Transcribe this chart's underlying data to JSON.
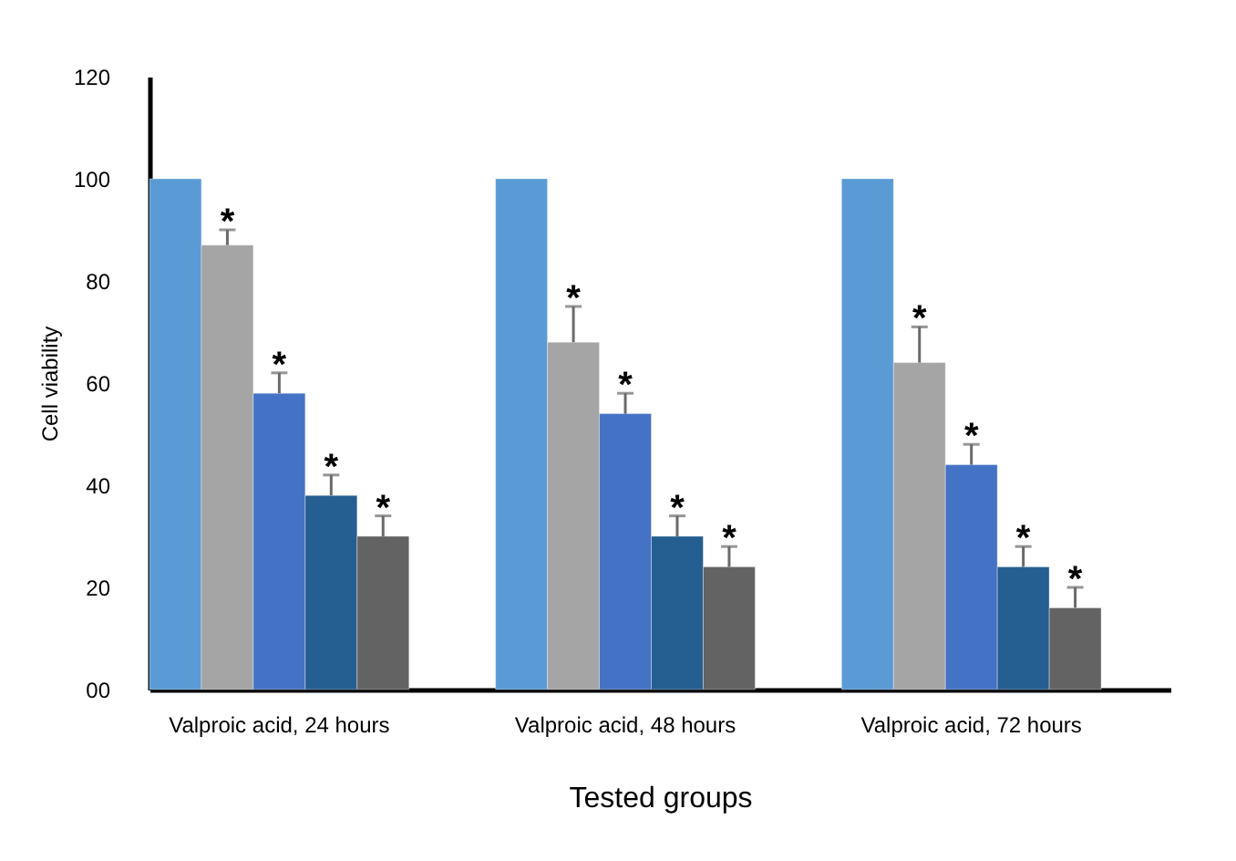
{
  "chart_data": {
    "type": "bar",
    "xlabel": "Tested groups",
    "ylabel": "Cell viability",
    "categories": [
      "Valproic acid, 24 hours",
      "Valproic acid, 48 hours",
      "Valproic acid, 72 hours"
    ],
    "series": [
      {
        "color": "#5b9bd5",
        "values": [
          100,
          100,
          100
        ]
      },
      {
        "color": "#a5a5a5",
        "values": [
          87,
          68,
          64
        ],
        "errors": [
          [
            87,
            90
          ],
          [
            68,
            75
          ],
          [
            64,
            71
          ]
        ],
        "value_labels": [
          "*",
          "*",
          "*"
        ]
      },
      {
        "color": "#4472c4",
        "values": [
          58,
          54,
          44
        ],
        "errors": [
          [
            58,
            62
          ],
          [
            54,
            58
          ],
          [
            44,
            48
          ]
        ],
        "value_labels": [
          "*",
          "*",
          "*"
        ]
      },
      {
        "color": "#255e91",
        "values": [
          38,
          30,
          24
        ],
        "errors": [
          [
            38,
            42
          ],
          [
            30,
            34
          ],
          [
            24,
            28
          ]
        ],
        "value_labels": [
          "*",
          "*",
          "*"
        ]
      },
      {
        "color": "#636363",
        "values": [
          30,
          24,
          16
        ],
        "errors": [
          [
            30,
            34
          ],
          [
            24,
            28
          ],
          [
            16,
            20
          ]
        ],
        "value_labels": [
          "*",
          "*",
          "*"
        ]
      }
    ],
    "ylim": [
      0,
      120
    ],
    "yticks": [
      {
        "value": 0,
        "label": "00"
      },
      20,
      40,
      60,
      80,
      100,
      120
    ],
    "grid": false,
    "legend": false
  }
}
